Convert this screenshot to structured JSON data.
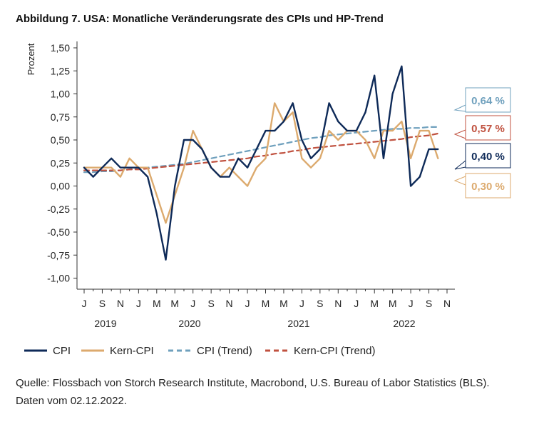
{
  "title": "Abbildung 7. USA: Monatliche Veränderungsrate des CPIs und HP-Trend",
  "source": "Quelle: Flossbach von Storch Research Institute, Macrobond, U.S. Bureau of Labor Statistics (BLS). Daten vom 02.12.2022.",
  "chart_data": {
    "type": "line",
    "title": "Abbildung 7. USA: Monatliche Veränderungsrate des CPIs und HP-Trend",
    "ylabel": "Prozent",
    "xlabel": "",
    "ylim": [
      -1.1,
      1.6
    ],
    "yticks": [
      -1.0,
      -0.75,
      -0.5,
      -0.25,
      0.0,
      0.25,
      0.5,
      0.75,
      1.0,
      1.25,
      1.5
    ],
    "ytick_labels": [
      "-1,00",
      "-0,75",
      "-0,50",
      "-0,25",
      "0,00",
      "0,25",
      "0,50",
      "0,75",
      "1,00",
      "1,25",
      "1,50"
    ],
    "x_month_labels": [
      "J",
      "S",
      "N",
      "J",
      "M",
      "M",
      "J",
      "S",
      "N",
      "J",
      "M",
      "M",
      "J",
      "S",
      "N",
      "J",
      "M",
      "M",
      "J",
      "S",
      "N"
    ],
    "year_labels": [
      "2019",
      "2020",
      "2021",
      "2022"
    ],
    "categories": [
      "2019-07",
      "2019-08",
      "2019-09",
      "2019-10",
      "2019-11",
      "2019-12",
      "2020-01",
      "2020-02",
      "2020-03",
      "2020-04",
      "2020-05",
      "2020-06",
      "2020-07",
      "2020-08",
      "2020-09",
      "2020-10",
      "2020-11",
      "2020-12",
      "2021-01",
      "2021-02",
      "2021-03",
      "2021-04",
      "2021-05",
      "2021-06",
      "2021-07",
      "2021-08",
      "2021-09",
      "2021-10",
      "2021-11",
      "2021-12",
      "2022-01",
      "2022-02",
      "2022-03",
      "2022-04",
      "2022-05",
      "2022-06",
      "2022-07",
      "2022-08",
      "2022-09",
      "2022-10"
    ],
    "series": [
      {
        "name": "CPI",
        "color": "#0e2a58",
        "dash": "solid",
        "values": [
          0.2,
          0.1,
          0.2,
          0.3,
          0.2,
          0.2,
          0.2,
          0.1,
          -0.3,
          -0.8,
          0.0,
          0.5,
          0.5,
          0.4,
          0.2,
          0.1,
          0.1,
          0.3,
          0.2,
          0.4,
          0.6,
          0.6,
          0.7,
          0.9,
          0.5,
          0.3,
          0.4,
          0.9,
          0.7,
          0.6,
          0.6,
          0.8,
          1.2,
          0.3,
          1.0,
          1.3,
          0.0,
          0.1,
          0.4,
          0.4
        ]
      },
      {
        "name": "Kern-CPI",
        "color": "#dcaa6e",
        "dash": "solid",
        "values": [
          0.2,
          0.2,
          0.2,
          0.2,
          0.1,
          0.3,
          0.2,
          0.2,
          -0.1,
          -0.4,
          -0.1,
          0.2,
          0.6,
          0.4,
          0.2,
          0.1,
          0.2,
          0.1,
          0.0,
          0.2,
          0.3,
          0.9,
          0.7,
          0.8,
          0.3,
          0.2,
          0.3,
          0.6,
          0.5,
          0.6,
          0.6,
          0.5,
          0.3,
          0.6,
          0.6,
          0.7,
          0.3,
          0.6,
          0.6,
          0.3
        ]
      },
      {
        "name": "CPI (Trend)",
        "color": "#6fa0bd",
        "dash": "dashed",
        "values": [
          0.15,
          0.15,
          0.16,
          0.16,
          0.17,
          0.18,
          0.19,
          0.2,
          0.21,
          0.22,
          0.23,
          0.24,
          0.26,
          0.28,
          0.3,
          0.32,
          0.34,
          0.36,
          0.38,
          0.4,
          0.42,
          0.44,
          0.46,
          0.48,
          0.5,
          0.52,
          0.53,
          0.55,
          0.56,
          0.57,
          0.58,
          0.59,
          0.6,
          0.61,
          0.62,
          0.62,
          0.63,
          0.63,
          0.64,
          0.64
        ]
      },
      {
        "name": "Kern-CPI (Trend)",
        "color": "#c0513f",
        "dash": "dashed",
        "values": [
          0.17,
          0.17,
          0.17,
          0.17,
          0.17,
          0.18,
          0.18,
          0.19,
          0.2,
          0.21,
          0.22,
          0.23,
          0.24,
          0.25,
          0.26,
          0.27,
          0.28,
          0.29,
          0.3,
          0.32,
          0.33,
          0.35,
          0.36,
          0.38,
          0.39,
          0.41,
          0.42,
          0.43,
          0.44,
          0.45,
          0.46,
          0.47,
          0.48,
          0.49,
          0.5,
          0.51,
          0.53,
          0.54,
          0.55,
          0.57
        ]
      }
    ],
    "end_labels": [
      {
        "series": "CPI (Trend)",
        "text": "0,64 %",
        "value": 0.64
      },
      {
        "series": "Kern-CPI (Trend)",
        "text": "0,57 %",
        "value": 0.57
      },
      {
        "series": "CPI",
        "text": "0,40 %",
        "value": 0.4
      },
      {
        "series": "Kern-CPI",
        "text": "0,30 %",
        "value": 0.3
      }
    ],
    "legend": {
      "position": "bottom-left"
    }
  }
}
